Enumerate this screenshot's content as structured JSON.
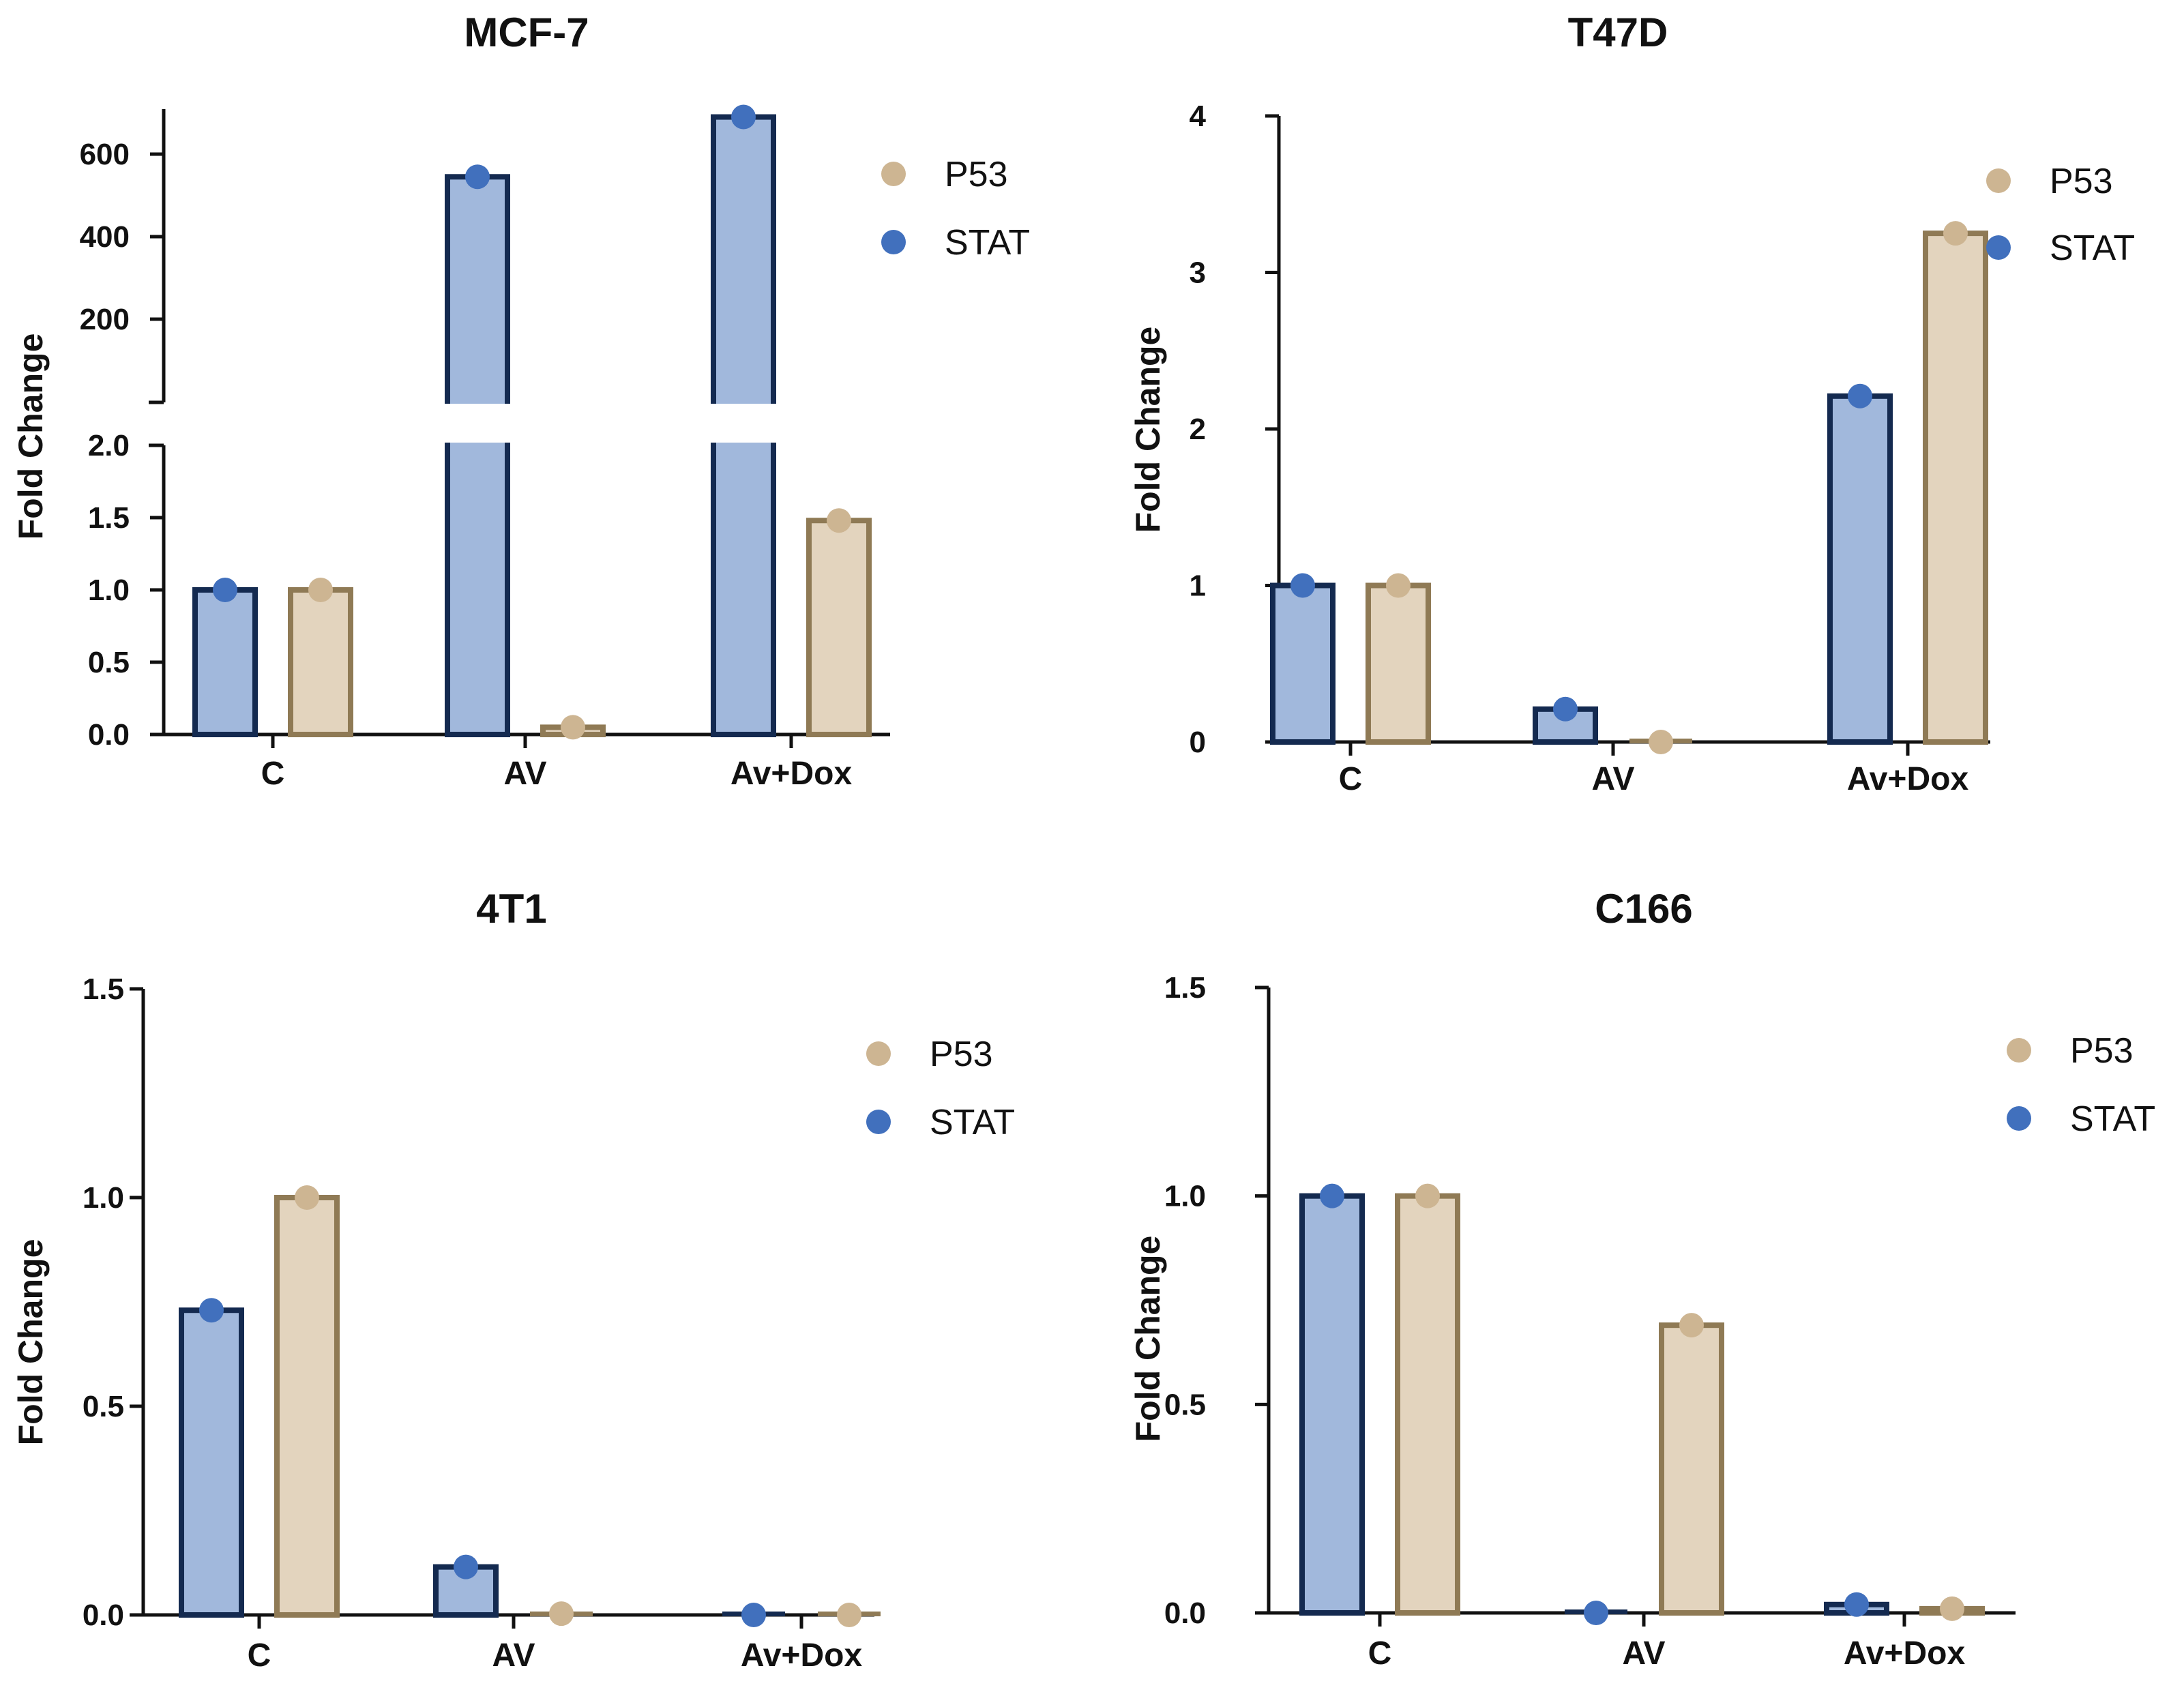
{
  "colors": {
    "stat_fill": "#a1b8dc",
    "stat_stroke": "#142a50",
    "stat_dot": "#4170bd",
    "p53_fill": "#e3d4be",
    "p53_stroke": "#8f7a55",
    "p53_dot": "#cdb592"
  },
  "chart_data": [
    {
      "type": "bar",
      "title": "MCF-7",
      "ylabel": "Fold Change",
      "categories": [
        "C",
        "AV",
        "Av+Dox"
      ],
      "axis_break": true,
      "lower_ylim": [
        0,
        2
      ],
      "lower_ticks": [
        "0.0",
        "0.5",
        "1.0",
        "1.5",
        "2.0"
      ],
      "upper_ylim": [
        0,
        700
      ],
      "upper_ticks": [
        "200",
        "400",
        "600"
      ],
      "legend": [
        "P53",
        "STAT"
      ],
      "series": [
        {
          "name": "STAT",
          "values": [
            1.0,
            545,
            690
          ]
        },
        {
          "name": "P53",
          "values": [
            1.0,
            0.05,
            1.48
          ]
        }
      ]
    },
    {
      "type": "bar",
      "title": "T47D",
      "ylabel": "Fold Change",
      "categories": [
        "C",
        "AV",
        "Av+Dox"
      ],
      "ylim": [
        0,
        4
      ],
      "yticks": [
        "0",
        "1",
        "2",
        "3",
        "4"
      ],
      "legend": [
        "P53",
        "STAT"
      ],
      "series": [
        {
          "name": "STAT",
          "values": [
            1.0,
            0.21,
            2.21
          ]
        },
        {
          "name": "P53",
          "values": [
            1.0,
            0.0,
            3.25
          ]
        }
      ]
    },
    {
      "type": "bar",
      "title": "4T1",
      "ylabel": "Fold Change",
      "categories": [
        "C",
        "AV",
        "Av+Dox"
      ],
      "ylim": [
        0,
        1.5
      ],
      "yticks": [
        "0.0",
        "0.5",
        "1.0",
        "1.5"
      ],
      "legend": [
        "P53",
        "STAT"
      ],
      "series": [
        {
          "name": "STAT",
          "values": [
            0.73,
            0.115,
            0.0
          ]
        },
        {
          "name": "P53",
          "values": [
            1.0,
            0.003,
            0.0
          ]
        }
      ]
    },
    {
      "type": "bar",
      "title": "C166",
      "ylabel": "Fold Change",
      "categories": [
        "C",
        "AV",
        "Av+Dox"
      ],
      "ylim": [
        0,
        1.5
      ],
      "yticks": [
        "0.0",
        "0.5",
        "1.0",
        "1.5"
      ],
      "legend": [
        "P53",
        "STAT"
      ],
      "series": [
        {
          "name": "STAT",
          "values": [
            1.0,
            0.0,
            0.02
          ]
        },
        {
          "name": "P53",
          "values": [
            1.0,
            0.69,
            0.01
          ]
        }
      ]
    }
  ]
}
